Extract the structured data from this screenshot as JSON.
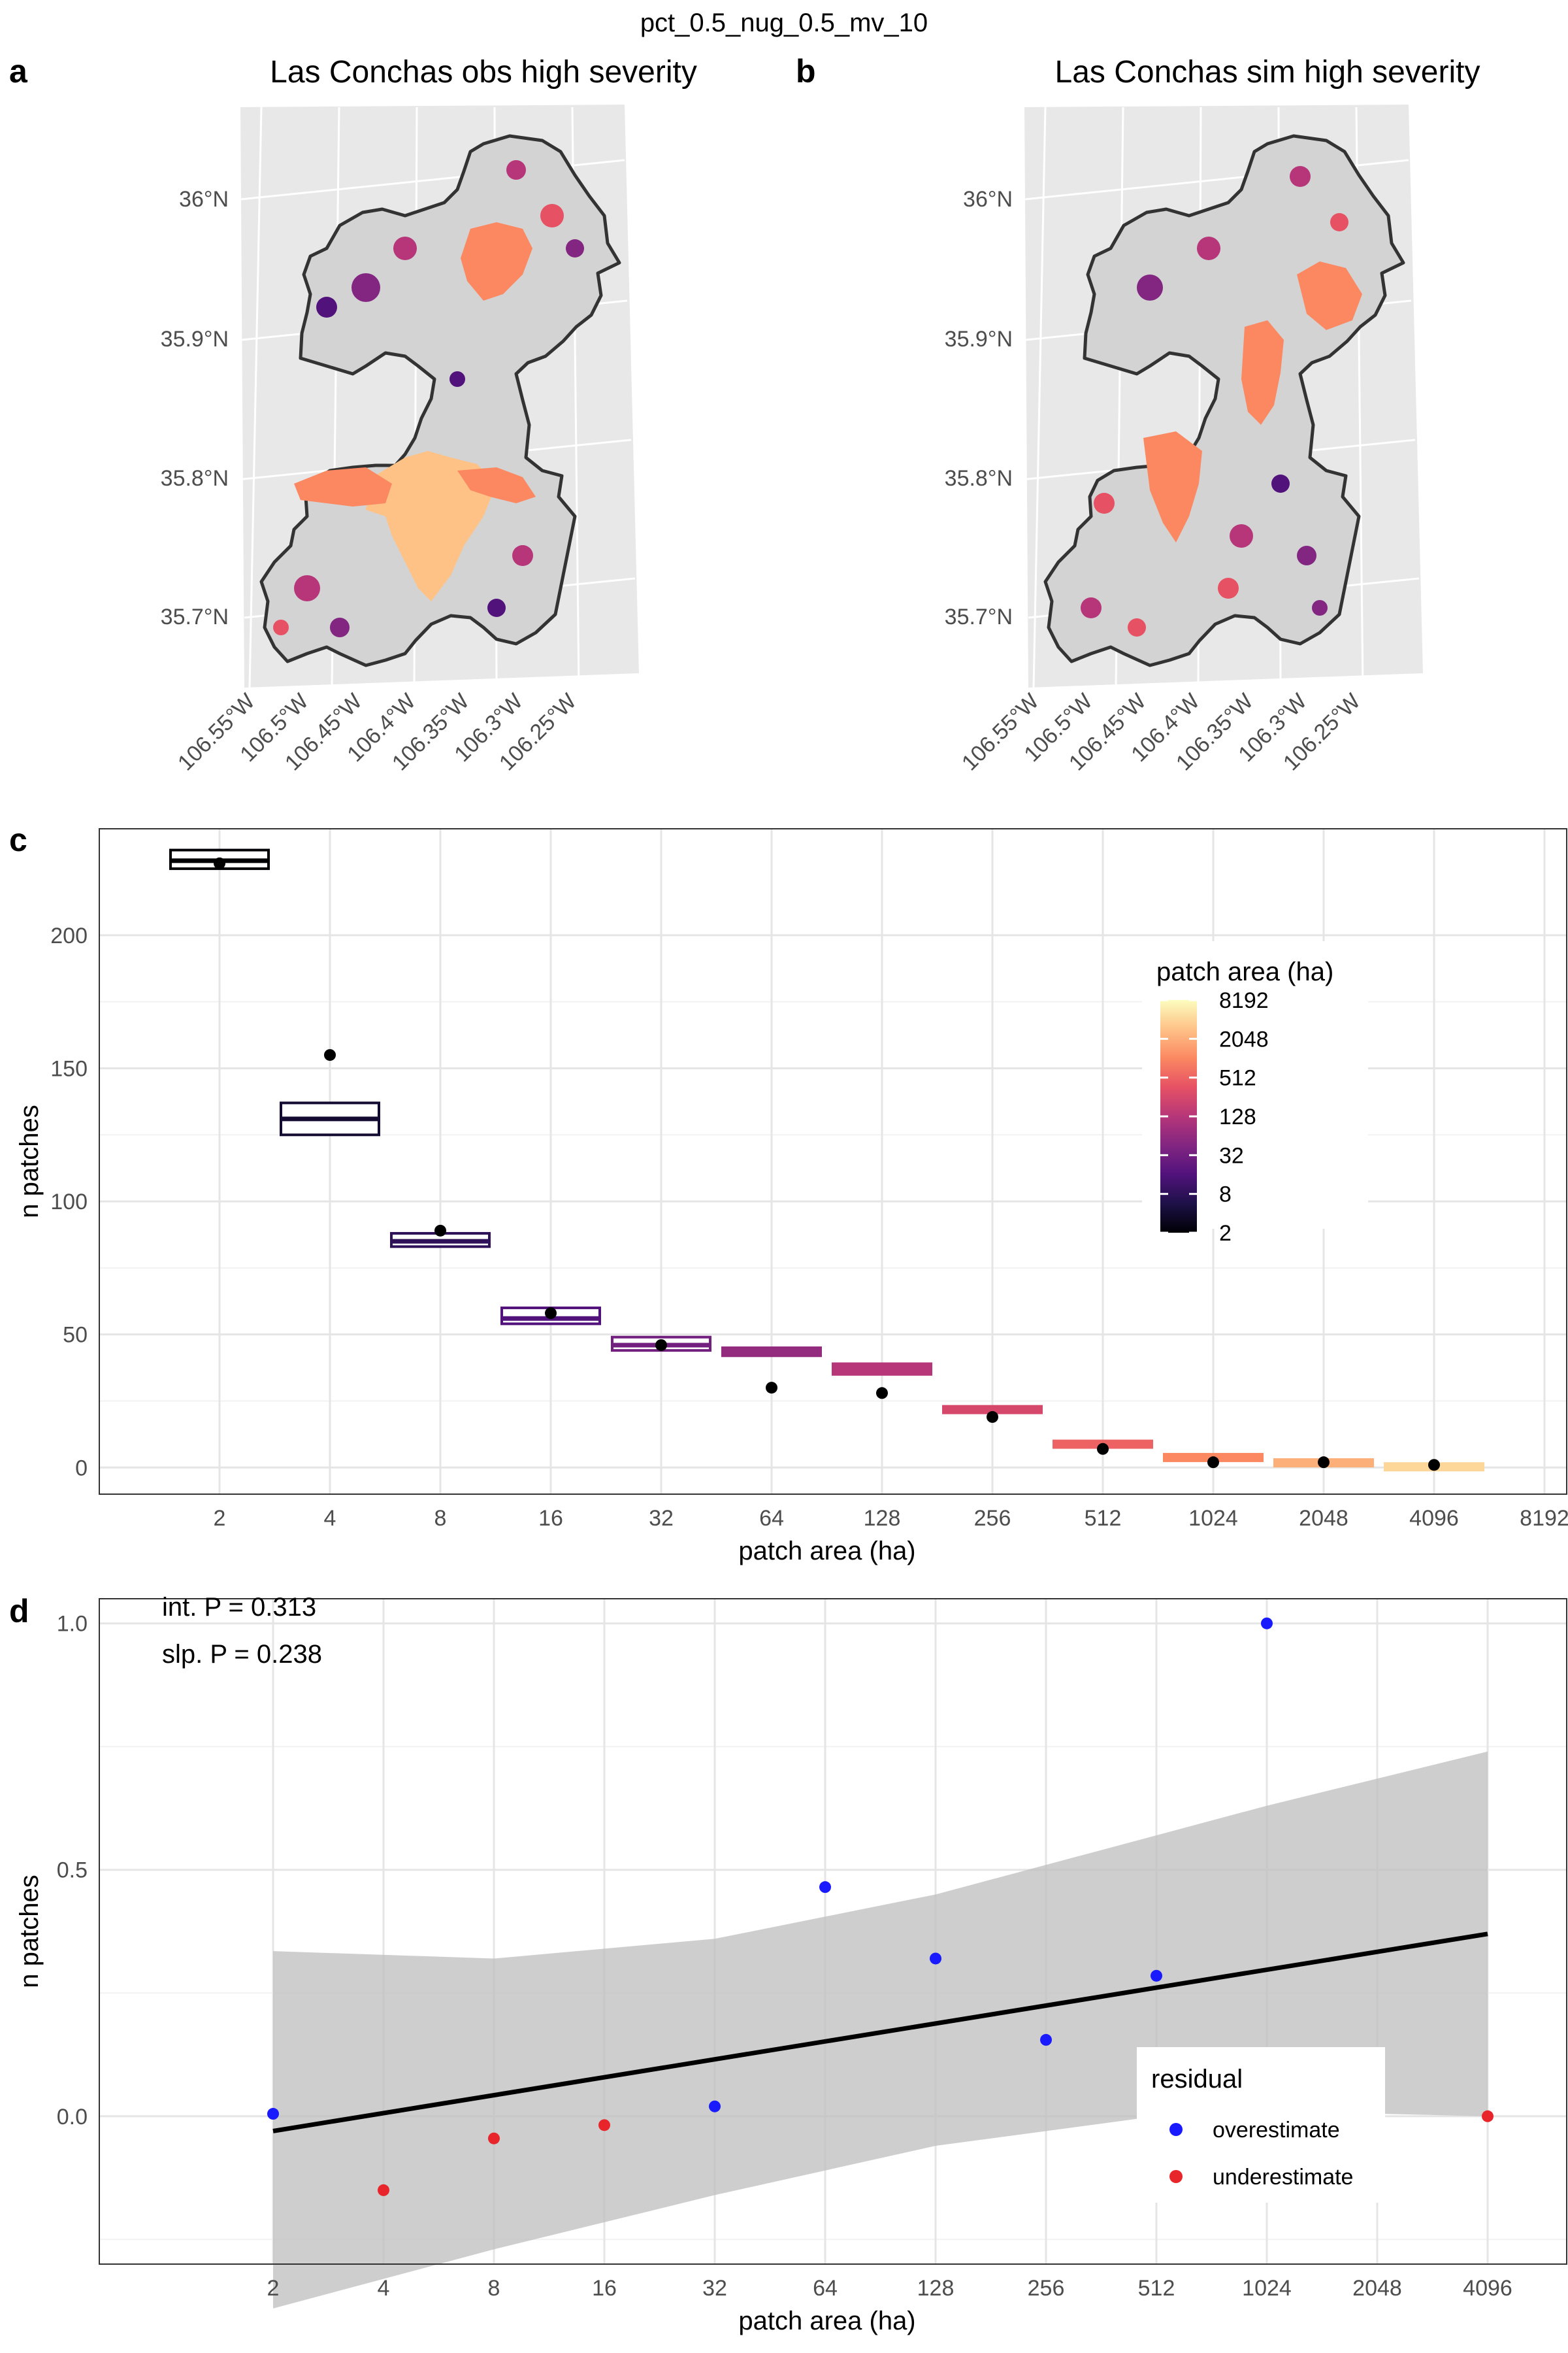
{
  "figure": {
    "title": "pct_0.5_nug_0.5_mv_10",
    "panel_letters": [
      "a",
      "b",
      "c",
      "d"
    ]
  },
  "colors": {
    "panel_bg": "#e8e8e8",
    "grid": "#ffffff",
    "boundary": "#333333",
    "overestimate": "#1a1aff",
    "underestimate": "#e8252a",
    "ci_band": "#bdbdbd",
    "magma": [
      "#000004",
      "#1d1147",
      "#51127c",
      "#822681",
      "#b63679",
      "#e65164",
      "#fb8861",
      "#fec287",
      "#fcfdbf"
    ]
  },
  "maps": {
    "lat_labels": [
      "36°N",
      "35.9°N",
      "35.8°N",
      "35.7°N"
    ],
    "lon_labels": [
      "106.55°W",
      "106.5°W",
      "106.45°W",
      "106.4°W",
      "106.35°W",
      "106.3°W",
      "106.25°W"
    ],
    "a": {
      "title": "Las Conchas obs high severity"
    },
    "b": {
      "title": "Las Conchas sim high severity"
    }
  },
  "chart_data": [
    {
      "type": "box",
      "panel": "c",
      "xlabel": "patch area (ha)",
      "ylabel": "n patches",
      "x_scale": "log2",
      "x_ticks": [
        "2",
        "4",
        "8",
        "16",
        "32",
        "64",
        "128",
        "256",
        "512",
        "1024",
        "2048",
        "4096",
        "8192"
      ],
      "y_ticks": [
        "0",
        "50",
        "100",
        "150",
        "200"
      ],
      "ylim": [
        -10,
        240
      ],
      "categories": [
        2,
        4,
        8,
        16,
        32,
        64,
        128,
        256,
        512,
        1024,
        2048,
        4096
      ],
      "boxes": [
        {
          "x": 2,
          "q1": 225,
          "median": 228,
          "q3": 232
        },
        {
          "x": 4,
          "q1": 125,
          "median": 131,
          "q3": 137
        },
        {
          "x": 8,
          "q1": 83,
          "median": 85,
          "q3": 88
        },
        {
          "x": 16,
          "q1": 54,
          "median": 56,
          "q3": 60
        },
        {
          "x": 32,
          "q1": 44,
          "median": 46,
          "q3": 49
        },
        {
          "x": 64,
          "q1": 42,
          "median": 43,
          "q3": 45
        },
        {
          "x": 128,
          "q1": 35,
          "median": 37,
          "q3": 39
        },
        {
          "x": 256,
          "q1": 21,
          "median": 22,
          "q3": 23
        },
        {
          "x": 512,
          "q1": 8,
          "median": 9,
          "q3": 10
        },
        {
          "x": 1024,
          "q1": 3,
          "median": 4,
          "q3": 5
        },
        {
          "x": 2048,
          "q1": 2,
          "median": 2.5,
          "q3": 3
        },
        {
          "x": 4096,
          "q1": 0.5,
          "median": 1,
          "q3": 1.5
        }
      ],
      "observed": [
        {
          "x": 2,
          "y": 227
        },
        {
          "x": 4,
          "y": 155
        },
        {
          "x": 8,
          "y": 89
        },
        {
          "x": 16,
          "y": 58
        },
        {
          "x": 32,
          "y": 46
        },
        {
          "x": 64,
          "y": 30
        },
        {
          "x": 128,
          "y": 28
        },
        {
          "x": 256,
          "y": 19
        },
        {
          "x": 512,
          "y": 7
        },
        {
          "x": 1024,
          "y": 2
        },
        {
          "x": 2048,
          "y": 2
        },
        {
          "x": 4096,
          "y": 1
        }
      ],
      "legend": {
        "title": "patch area (ha)",
        "labels": [
          "8192",
          "2048",
          "512",
          "128",
          "32",
          "8",
          "2"
        ],
        "placement": "right"
      }
    },
    {
      "type": "scatter",
      "panel": "d",
      "xlabel": "patch area (ha)",
      "ylabel": "n patches",
      "x_scale": "log2",
      "x_ticks": [
        "2",
        "4",
        "8",
        "16",
        "32",
        "64",
        "128",
        "256",
        "512",
        "1024",
        "2048",
        "4096"
      ],
      "y_ticks": [
        "0.0",
        "0.5",
        "1.0"
      ],
      "ylim": [
        -0.3,
        1.05
      ],
      "annotations": [
        "int. P =  0.313",
        "slp. P =  0.238"
      ],
      "points": [
        {
          "x": 2,
          "y": 0.005,
          "class": "overestimate"
        },
        {
          "x": 4,
          "y": -0.15,
          "class": "underestimate"
        },
        {
          "x": 8,
          "y": -0.045,
          "class": "underestimate"
        },
        {
          "x": 16,
          "y": -0.018,
          "class": "underestimate"
        },
        {
          "x": 32,
          "y": 0.02,
          "class": "overestimate"
        },
        {
          "x": 64,
          "y": 0.465,
          "class": "overestimate"
        },
        {
          "x": 128,
          "y": 0.32,
          "class": "overestimate"
        },
        {
          "x": 256,
          "y": 0.155,
          "class": "overestimate"
        },
        {
          "x": 512,
          "y": 0.285,
          "class": "overestimate"
        },
        {
          "x": 1024,
          "y": 1.0,
          "class": "overestimate"
        },
        {
          "x": 4096,
          "y": 0.0,
          "class": "underestimate"
        }
      ],
      "fit": {
        "x0": 2,
        "y0": -0.03,
        "x1": 4096,
        "y1": 0.37
      },
      "ci": [
        {
          "x": 2,
          "lo": -0.39,
          "hi": 0.335
        },
        {
          "x": 8,
          "lo": -0.27,
          "hi": 0.32
        },
        {
          "x": 32,
          "lo": -0.16,
          "hi": 0.36
        },
        {
          "x": 128,
          "lo": -0.06,
          "hi": 0.45
        },
        {
          "x": 512,
          "lo": 0.0,
          "hi": 0.57
        },
        {
          "x": 1024,
          "lo": 0.01,
          "hi": 0.63
        },
        {
          "x": 4096,
          "lo": 0.0,
          "hi": 0.74
        }
      ],
      "legend": {
        "title": "residual",
        "labels": [
          "overestimate",
          "underestimate"
        ],
        "placement": "bottom-right"
      }
    }
  ]
}
